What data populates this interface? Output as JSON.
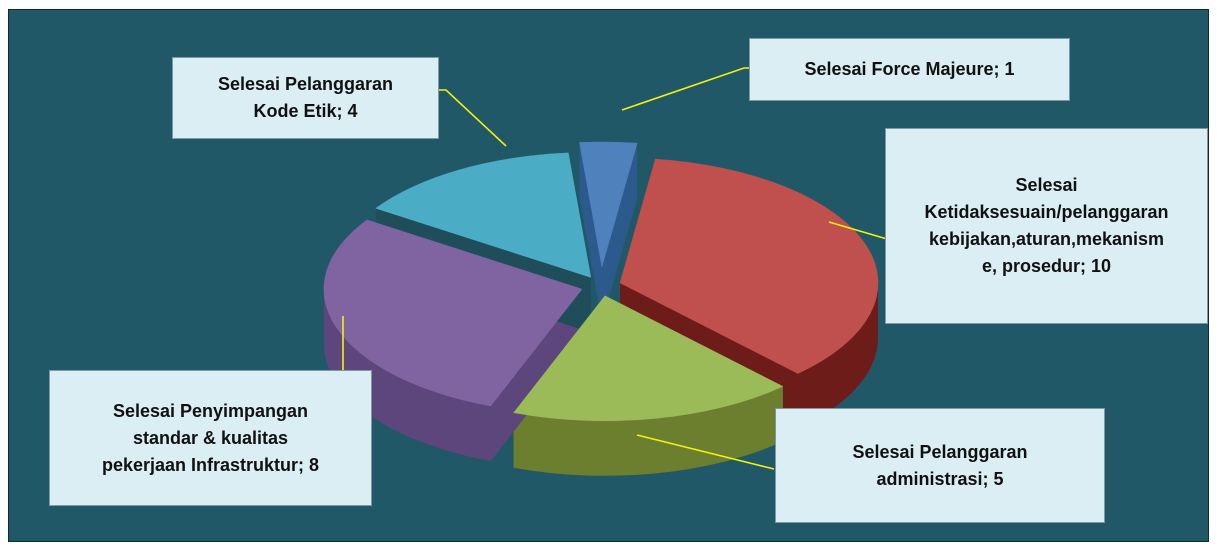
{
  "chart_data": {
    "type": "pie",
    "style": "3d-exploded",
    "title": "",
    "legend": "none",
    "slices": [
      {
        "label": "Selesai Force Majeure",
        "value": 1,
        "color": "#4f81bd",
        "side": "#2d5a8c",
        "text": "Selesai Force Majeure; 1"
      },
      {
        "label": "Selesai Ketidaksesuain/pelanggaran kebijakan,aturan,mekanisme, prosedur",
        "value": 10,
        "color": "#c0504d",
        "side": "#6e1c1a",
        "text": "Selesai Ketidaksesuain/pelanggaran kebijakan,aturan,mekanisme, prosedur; 10"
      },
      {
        "label": "Selesai Pelanggaran administrasi",
        "value": 5,
        "color": "#9bbb59",
        "side": "#6b7f2e",
        "text": "Selesai Pelanggaran administrasi; 5"
      },
      {
        "label": "Selesai Penyimpangan standar & kualitas pekerjaan Infrastruktur",
        "value": 8,
        "color": "#8064a2",
        "side": "#5d467c",
        "text": "Selesai Penyimpangan standar & kualitas pekerjaan Infrastruktur; 8"
      },
      {
        "label": "Selesai Pelanggaran Kode Etik",
        "value": 4,
        "color": "#4bacc6",
        "side": "#1f4d5a",
        "text": "Selesai Pelanggaran Kode Etik; 4"
      }
    ],
    "data_labels": {
      "force_majeure": [
        "Selesai Force Majeure; 1"
      ],
      "ketidaksesuaian": [
        "Selesai",
        "Ketidaksesuain/pelanggaran",
        "kebijakan,aturan,mekanism",
        "e, prosedur; 10"
      ],
      "administrasi": [
        "Selesai Pelanggaran",
        "administrasi; 5"
      ],
      "penyimpangan": [
        "Selesai Penyimpangan",
        "standar & kualitas",
        "pekerjaan Infrastruktur; 8"
      ],
      "kode_etik": [
        "Selesai Pelanggaran",
        "Kode Etik; 4"
      ]
    }
  },
  "colors": {
    "background": "#215868",
    "label_box": "#dbeef4",
    "leader_line": "#f2f20d"
  }
}
